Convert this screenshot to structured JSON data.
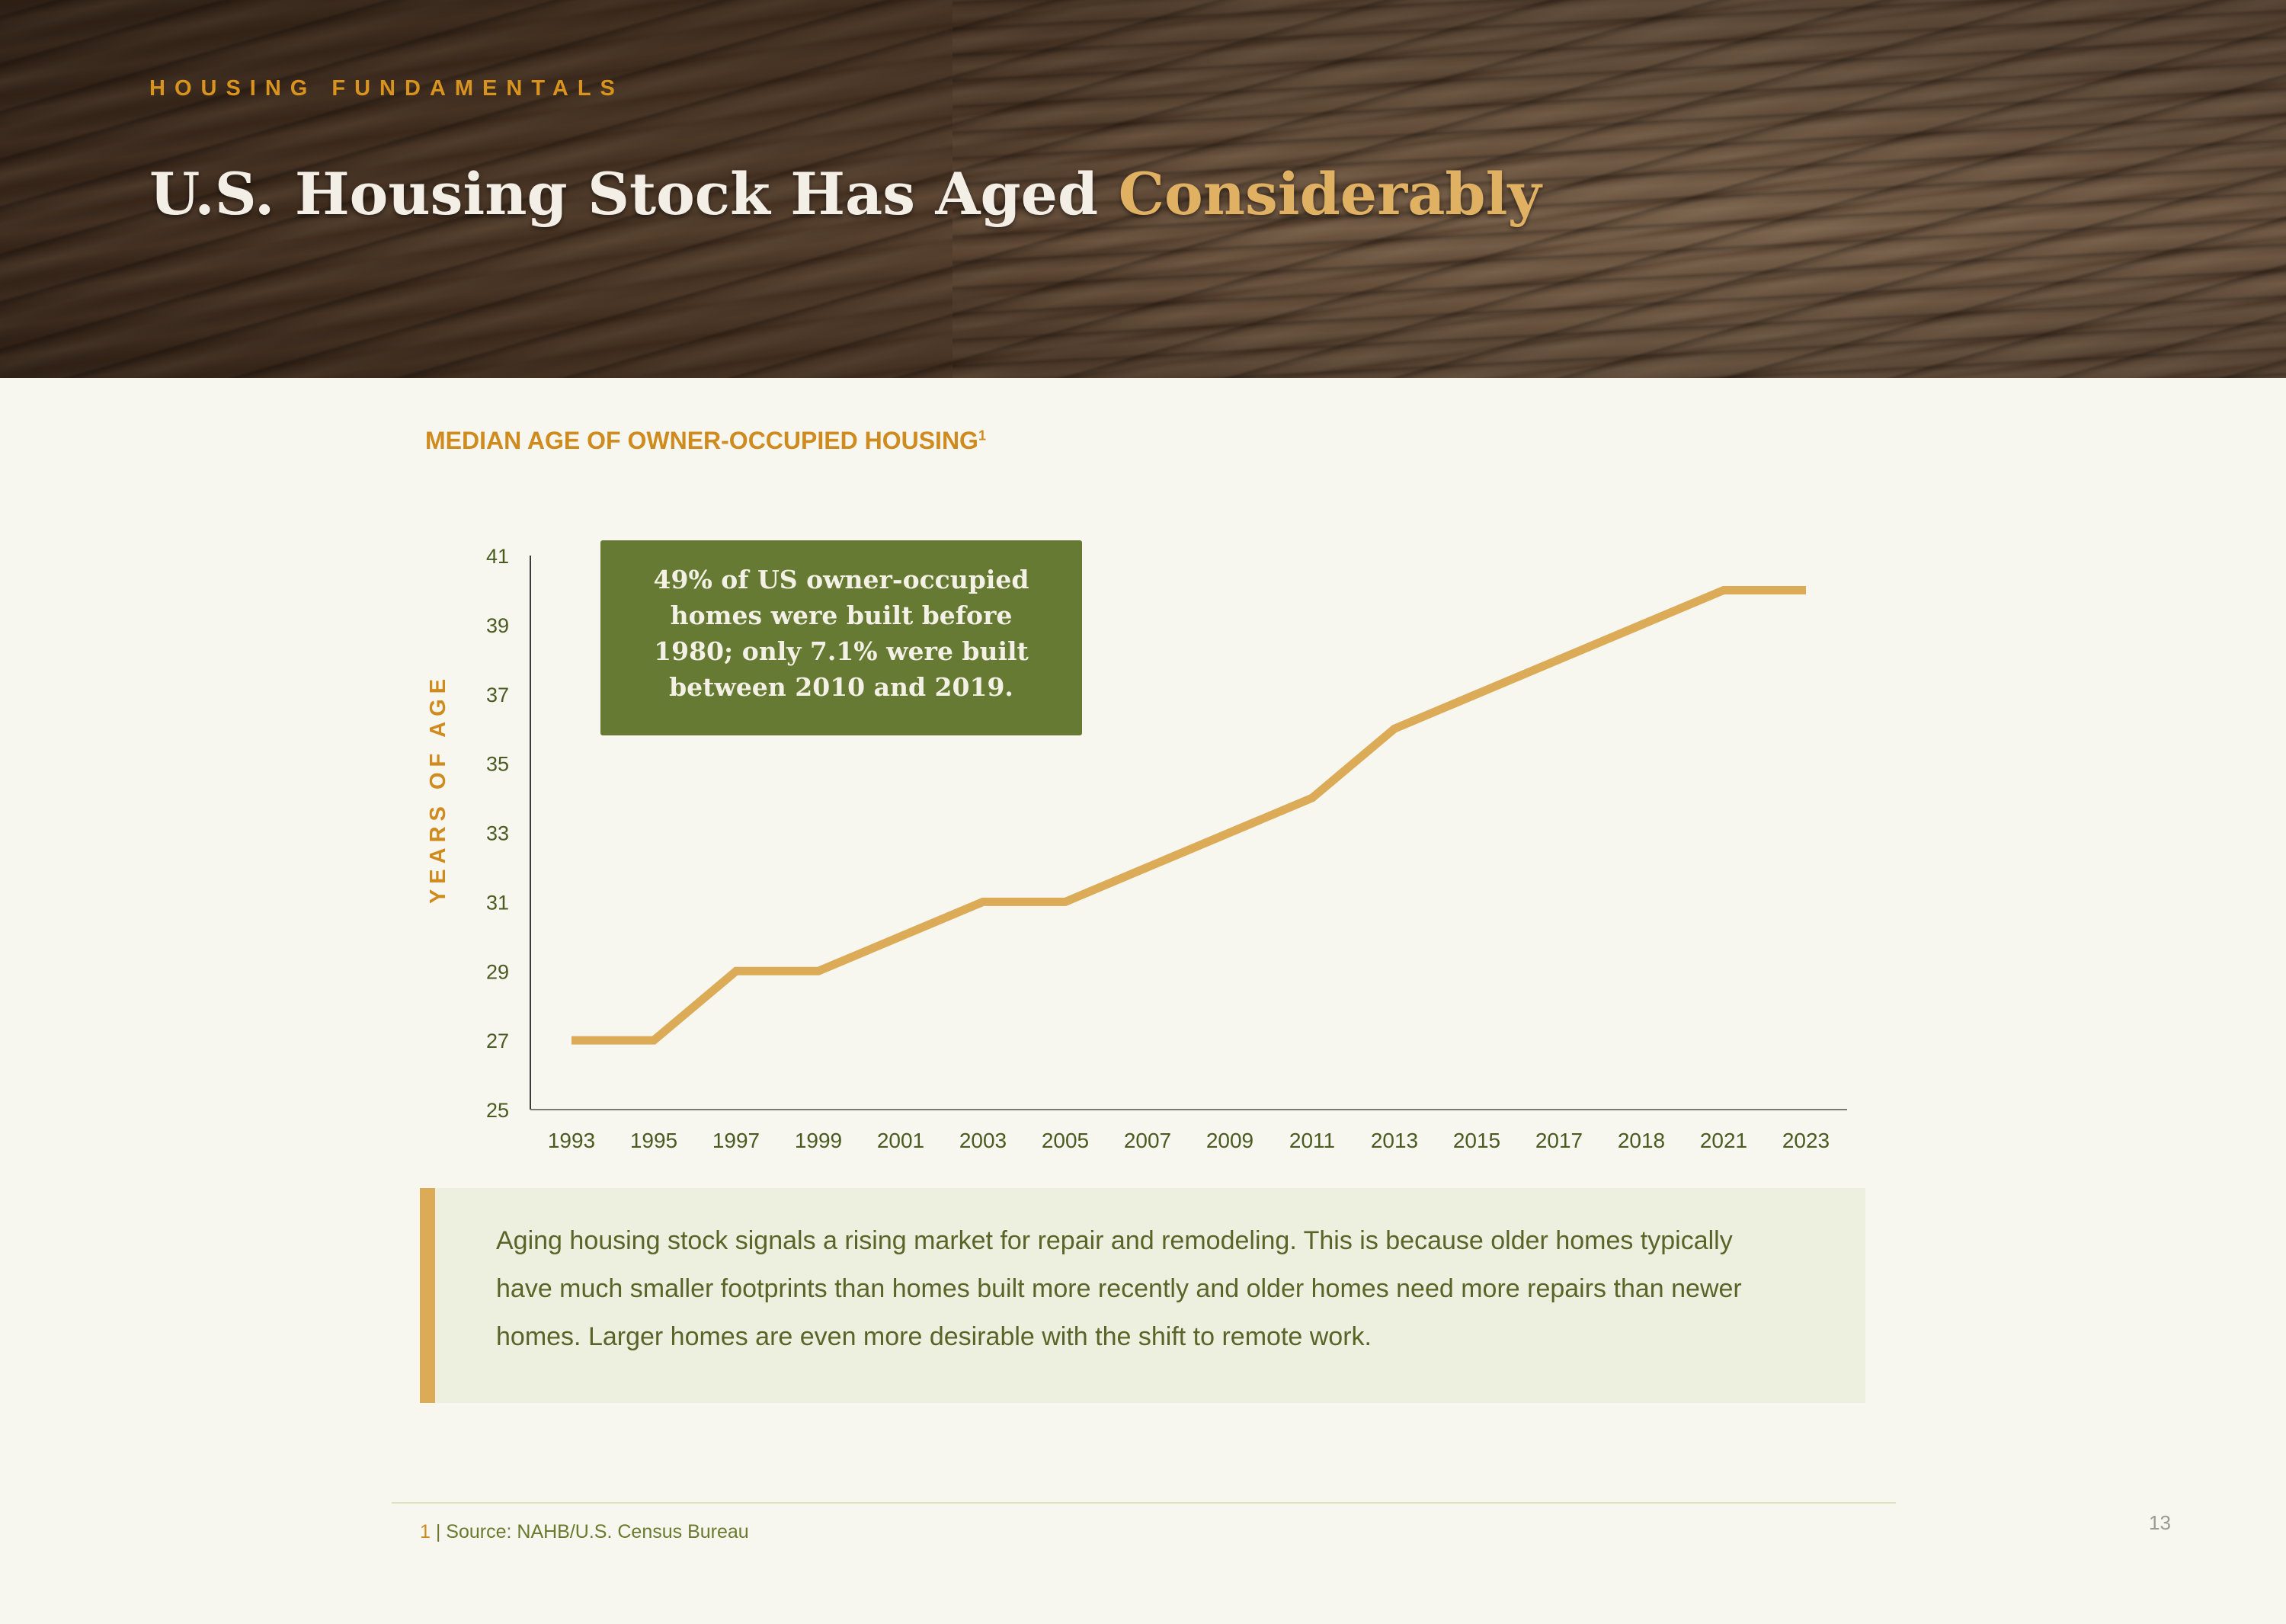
{
  "header": {
    "section_label": "HOUSING FUNDAMENTALS",
    "title_prefix": "U.S. Housing Stock Has Aged",
    "title_accent": "Considerably"
  },
  "chart": {
    "title": "MEDIAN AGE OF OWNER-OCCUPIED HOUSING",
    "footnote_marker": "1",
    "callout": "49% of US owner-occupied homes were built before 1980; only 7.1% were built between 2010 and 2019."
  },
  "chart_data": {
    "type": "line",
    "title": "MEDIAN AGE OF OWNER-OCCUPIED HOUSING",
    "xlabel": "",
    "ylabel": "YEARS OF AGE",
    "categories": [
      "1993",
      "1995",
      "1997",
      "1999",
      "2001",
      "2003",
      "2005",
      "2007",
      "2009",
      "2011",
      "2013",
      "2015",
      "2017",
      "2018",
      "2021",
      "2023"
    ],
    "series": [
      {
        "values": [
          27,
          27,
          29,
          29,
          30,
          31,
          31,
          32,
          33,
          34,
          36,
          37,
          38,
          39,
          40,
          40
        ]
      }
    ],
    "ylim": [
      25,
      41
    ],
    "yticks": [
      25,
      27,
      29,
      31,
      33,
      35,
      37,
      39,
      41
    ],
    "grid": false,
    "line_color": "#dcab57"
  },
  "note": {
    "text": "Aging housing stock signals a rising market for repair and remodeling. This is because older homes typically have much smaller footprints than homes built more recently and older homes need more repairs than newer homes. Larger homes are even more desirable with the shift to remote work."
  },
  "footer": {
    "footnote_number": "1",
    "footnote_text": " | Source: NAHB/U.S. Census Bureau",
    "page_number": "13"
  },
  "colors": {
    "accent_gold": "#dcab57",
    "accent_orange": "#cf8b1e",
    "olive": "#677a34",
    "background": "#f7f7ef"
  }
}
